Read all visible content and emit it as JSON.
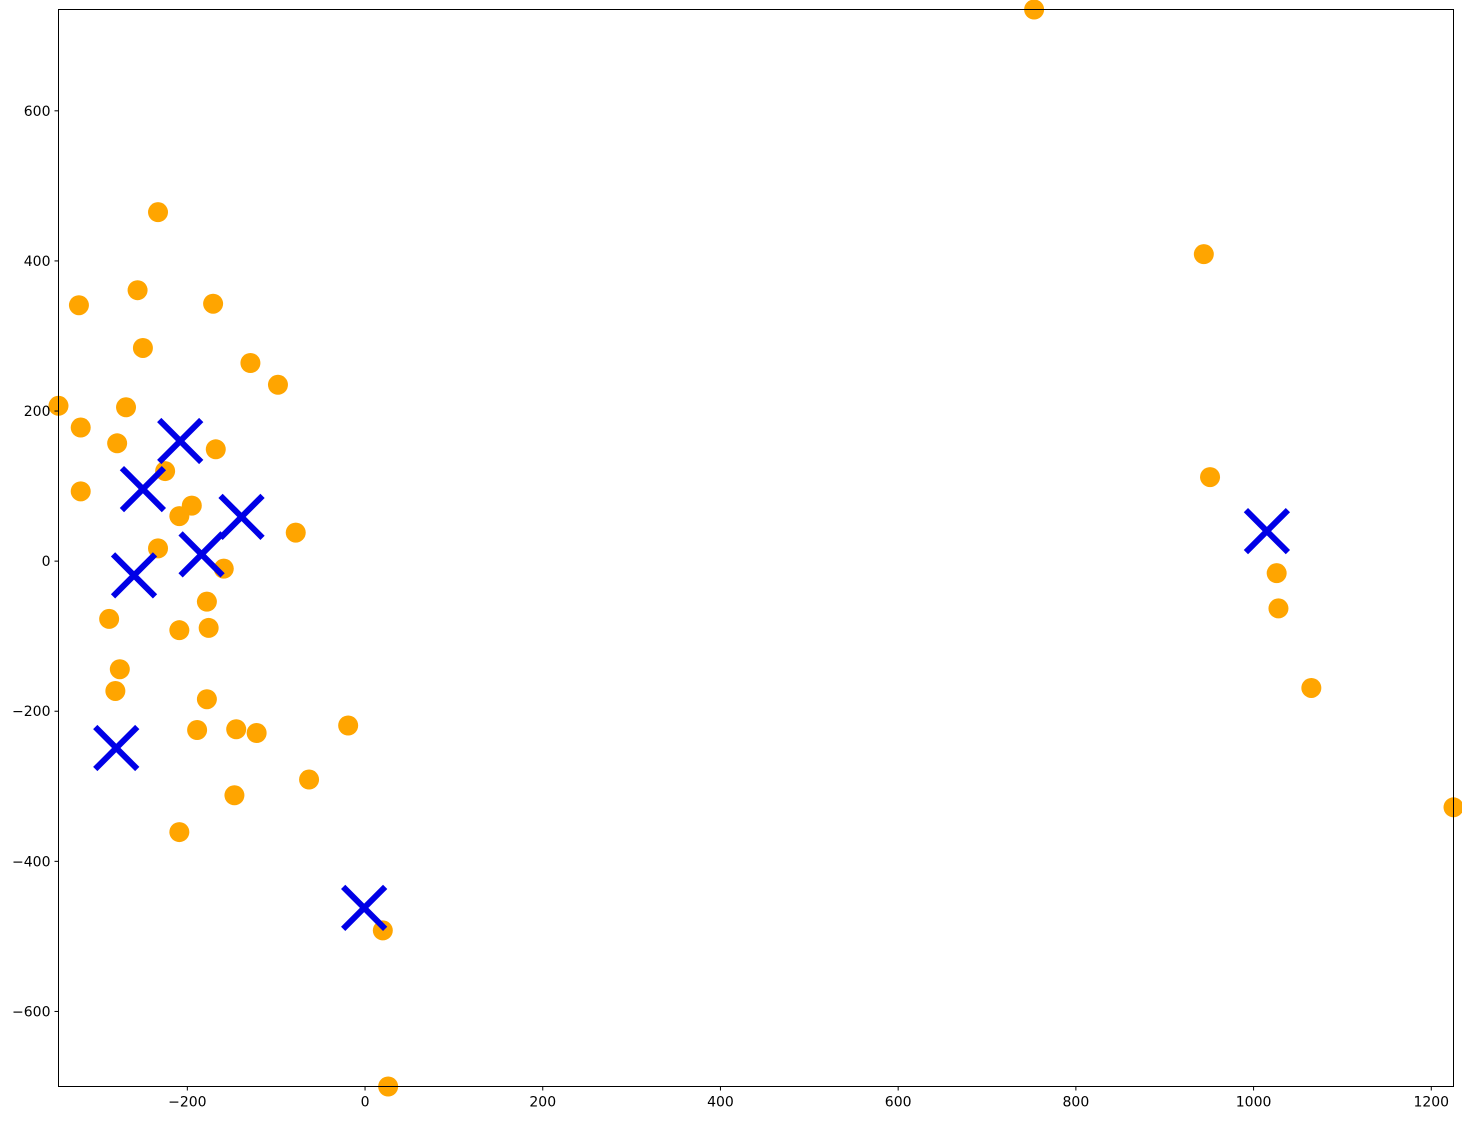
{
  "chart_data": {
    "type": "scatter",
    "title": "",
    "xlabel": "",
    "ylabel": "",
    "xlim": [
      -345,
      1225
    ],
    "ylim": [
      -700,
      735
    ],
    "grid": false,
    "x_ticks": [
      -200,
      0,
      200,
      400,
      600,
      800,
      1000,
      1200
    ],
    "y_ticks": [
      -600,
      -400,
      -200,
      0,
      200,
      400,
      600
    ],
    "x_tick_labels": [
      "−200",
      "0",
      "200",
      "400",
      "600",
      "800",
      "1000",
      "1200"
    ],
    "y_tick_labels": [
      "−600",
      "−400",
      "−200",
      "0",
      "200",
      "400",
      "600"
    ],
    "series": [
      {
        "marker": "circle",
        "color": "#ffa500",
        "points": [
          [
            753,
            735
          ],
          [
            944,
            409
          ],
          [
            951,
            112
          ],
          [
            1026,
            -16
          ],
          [
            1028,
            -63
          ],
          [
            1065,
            -169
          ],
          [
            1225,
            -328
          ],
          [
            -233,
            465
          ],
          [
            -322,
            341
          ],
          [
            -256,
            361
          ],
          [
            -171,
            343
          ],
          [
            -250,
            284
          ],
          [
            -129,
            264
          ],
          [
            -98,
            235
          ],
          [
            -345,
            207
          ],
          [
            -269,
            205
          ],
          [
            -320,
            178
          ],
          [
            -279,
            157
          ],
          [
            -168,
            149
          ],
          [
            -225,
            120
          ],
          [
            -320,
            93
          ],
          [
            -195,
            74
          ],
          [
            -209,
            60
          ],
          [
            -78,
            38
          ],
          [
            -233,
            17
          ],
          [
            -159,
            -10
          ],
          [
            -178,
            -54
          ],
          [
            -288,
            -77
          ],
          [
            -209,
            -92
          ],
          [
            -176,
            -89
          ],
          [
            -276,
            -144
          ],
          [
            -281,
            -173
          ],
          [
            -178,
            -184
          ],
          [
            -189,
            -225
          ],
          [
            -145,
            -224
          ],
          [
            -122,
            -229
          ],
          [
            -19,
            -219
          ],
          [
            -63,
            -291
          ],
          [
            -147,
            -312
          ],
          [
            -209,
            -361
          ],
          [
            20,
            -492
          ],
          [
            26,
            -700
          ]
        ]
      },
      {
        "marker": "x",
        "color": "#0000e6",
        "points": [
          [
            -208,
            160
          ],
          [
            -250,
            96
          ],
          [
            -139,
            59
          ],
          [
            -184,
            9
          ],
          [
            -260,
            -19
          ],
          [
            -280,
            -249
          ],
          [
            -1,
            -462
          ],
          [
            1015,
            40
          ]
        ]
      }
    ]
  }
}
